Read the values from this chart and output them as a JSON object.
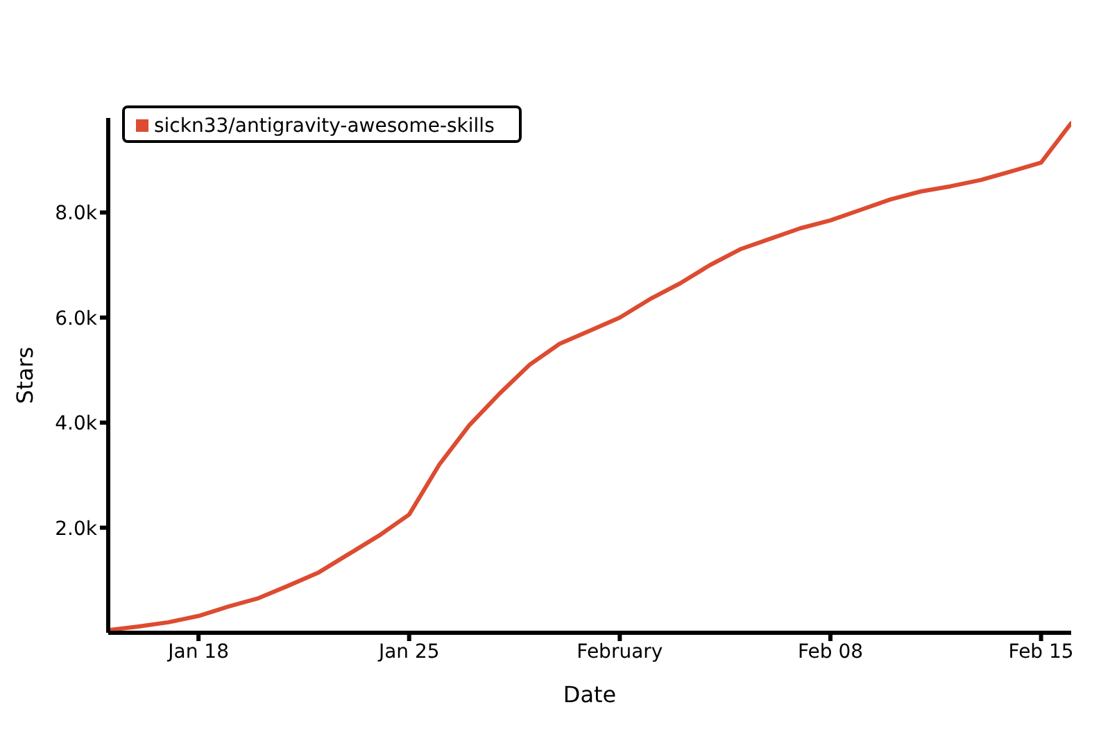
{
  "chart_data": {
    "type": "line",
    "xlabel": "Date",
    "ylabel": "Stars",
    "x": [
      "--01-15",
      "--01-16",
      "--01-17",
      "--01-18",
      "--01-19",
      "--01-20",
      "--01-21",
      "--01-22",
      "--01-23",
      "--01-24",
      "--01-25",
      "--01-26",
      "--01-27",
      "--01-28",
      "--01-29",
      "--01-30",
      "--01-31",
      "--02-01",
      "--02-02",
      "--02-03",
      "--02-04",
      "--02-05",
      "--02-06",
      "--02-07",
      "--02-08",
      "--02-09",
      "--02-10",
      "--02-11",
      "--02-12",
      "--02-13",
      "--02-14",
      "--02-15",
      "--02-16"
    ],
    "series": [
      {
        "name": "sickn33/antigravity-awesome-skills",
        "color": "#dd4b30",
        "values": [
          50,
          120,
          200,
          320,
          500,
          660,
          900,
          1150,
          1500,
          1850,
          2250,
          3200,
          3950,
          4550,
          5100,
          5500,
          5750,
          6000,
          6350,
          6650,
          7000,
          7300,
          7500,
          7700,
          7850,
          8050,
          8250,
          8400,
          8500,
          8620,
          8780,
          8950,
          9700
        ]
      }
    ],
    "xlim": [
      "--01-15",
      "--02-16"
    ],
    "xticks": [
      {
        "value": "--01-18",
        "label": "Jan 18"
      },
      {
        "value": "--01-25",
        "label": "Jan 25"
      },
      {
        "value": "--02-01",
        "label": "February"
      },
      {
        "value": "--02-08",
        "label": "Feb 08"
      },
      {
        "value": "--02-15",
        "label": "Feb 15"
      }
    ],
    "ylim": [
      0,
      9800
    ],
    "yticks": [
      {
        "value": 2000,
        "label": "2.0k"
      },
      {
        "value": 4000,
        "label": "4.0k"
      },
      {
        "value": 6000,
        "label": "6.0k"
      },
      {
        "value": 8000,
        "label": "8.0k"
      }
    ],
    "grid": false,
    "legend": "top left",
    "marker": "none",
    "line_style": "solid"
  }
}
